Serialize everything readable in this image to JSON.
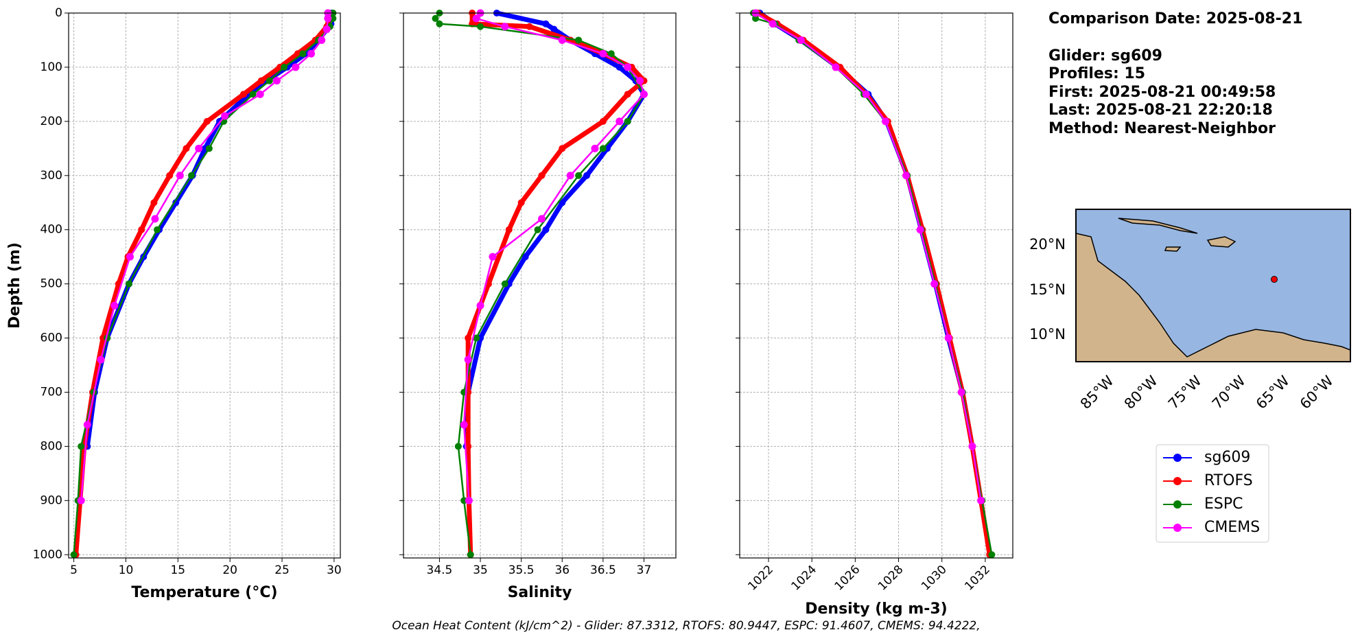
{
  "chart_data": [
    {
      "type": "line",
      "xlabel": "Temperature (°C)",
      "ylabel": "Depth (m)",
      "xlim": [
        4.5,
        30.6
      ],
      "xticks": [
        5,
        10,
        15,
        20,
        25,
        30
      ],
      "ylim": [
        0,
        1006
      ],
      "yticks": [
        0,
        100,
        200,
        300,
        400,
        500,
        600,
        700,
        800,
        900,
        1000
      ],
      "y_inverted": true,
      "grid": true,
      "xtick_rotation": 0,
      "series": [
        {
          "name": "sg609",
          "color": "#0000ff",
          "x": [
            29.8,
            29.8,
            29.7,
            29.3,
            28.5,
            27.3,
            25.5,
            23.5,
            21.8,
            19.0,
            17.6,
            16.4,
            14.8,
            13.2,
            11.7,
            10.3,
            8.2,
            7.0,
            6.3
          ],
          "y": [
            0,
            10,
            20,
            30,
            50,
            75,
            100,
            125,
            150,
            200,
            250,
            300,
            350,
            400,
            450,
            500,
            600,
            700,
            800
          ]
        },
        {
          "name": "RTOFS",
          "color": "#ff0000",
          "x": [
            29.5,
            29.5,
            29.3,
            28.2,
            26.5,
            24.8,
            23.0,
            21.3,
            17.8,
            15.8,
            14.2,
            12.7,
            11.5,
            10.2,
            9.3,
            7.8,
            6.8,
            6.0,
            5.6,
            5.2
          ],
          "y": [
            0,
            10,
            25,
            50,
            75,
            100,
            125,
            150,
            200,
            250,
            300,
            350,
            400,
            450,
            500,
            600,
            700,
            800,
            900,
            1000
          ]
        },
        {
          "name": "ESPC",
          "color": "#008000",
          "x": [
            29.9,
            29.9,
            29.6,
            28.5,
            27.0,
            25.2,
            23.8,
            22.2,
            19.4,
            18.0,
            16.3,
            13.0,
            10.3,
            8.2,
            6.9,
            5.7,
            5.4,
            5.0
          ],
          "y": [
            0,
            10,
            25,
            50,
            75,
            100,
            125,
            150,
            200,
            250,
            300,
            400,
            500,
            600,
            700,
            800,
            900,
            1000
          ]
        },
        {
          "name": "CMEMS",
          "color": "#ff00ff",
          "x": [
            29.4,
            29.4,
            29.3,
            28.8,
            27.8,
            26.3,
            24.5,
            22.9,
            19.5,
            17.0,
            15.2,
            12.8,
            10.4,
            8.9,
            7.6,
            6.3,
            5.7
          ],
          "y": [
            0,
            10,
            30,
            50,
            75,
            100,
            125,
            150,
            190,
            250,
            300,
            380,
            450,
            540,
            640,
            760,
            900
          ]
        }
      ]
    },
    {
      "type": "line",
      "xlabel": "Salinity",
      "xlim": [
        34.06,
        37.39
      ],
      "xticks": [
        34.5,
        35.0,
        35.5,
        36.0,
        36.5,
        37.0
      ],
      "ylim": [
        0,
        1006
      ],
      "yticks": [
        0,
        100,
        200,
        300,
        400,
        500,
        600,
        700,
        800,
        900,
        1000
      ],
      "y_inverted": true,
      "grid": true,
      "xtick_rotation": 0,
      "series": [
        {
          "color": "#0000ff",
          "x": [
            35.2,
            35.8,
            35.9,
            36.1,
            36.4,
            36.7,
            36.9,
            37.0,
            36.8,
            36.55,
            36.3,
            36.0,
            35.8,
            35.55,
            35.35,
            35.0,
            34.85,
            34.83
          ],
          "y": [
            0,
            20,
            30,
            50,
            75,
            100,
            125,
            150,
            200,
            250,
            300,
            350,
            400,
            450,
            500,
            600,
            700,
            800
          ]
        },
        {
          "color": "#ff0000",
          "x": [
            34.9,
            34.9,
            35.6,
            36.1,
            36.5,
            36.85,
            37.0,
            36.8,
            36.5,
            36.0,
            35.75,
            35.5,
            35.35,
            35.1,
            34.85,
            34.85,
            34.85,
            34.86,
            34.88
          ],
          "y": [
            0,
            20,
            25,
            50,
            75,
            100,
            125,
            150,
            200,
            250,
            300,
            350,
            400,
            500,
            600,
            700,
            800,
            900,
            1000
          ]
        },
        {
          "color": "#008000",
          "x": [
            34.5,
            34.45,
            34.5,
            35.0,
            36.2,
            36.6,
            36.8,
            37.0,
            36.8,
            36.5,
            36.2,
            35.7,
            35.3,
            34.95,
            34.8,
            34.73,
            34.8,
            34.88
          ],
          "y": [
            0,
            10,
            20,
            25,
            50,
            75,
            100,
            150,
            200,
            250,
            300,
            400,
            500,
            600,
            700,
            800,
            900,
            1000
          ]
        },
        {
          "color": "#ff00ff",
          "x": [
            35.0,
            34.95,
            35.3,
            36.0,
            36.5,
            36.8,
            36.95,
            37.0,
            36.7,
            36.4,
            36.1,
            35.75,
            35.15,
            35.0,
            34.85,
            34.8,
            34.86
          ],
          "y": [
            0,
            10,
            25,
            50,
            75,
            100,
            125,
            150,
            200,
            250,
            300,
            380,
            450,
            540,
            640,
            760,
            900
          ]
        }
      ]
    },
    {
      "type": "line",
      "xlabel": "Density (kg m-3)",
      "xlim": [
        1020.67,
        1033.27
      ],
      "xticks": [
        1022,
        1024,
        1026,
        1028,
        1030,
        1032
      ],
      "ylim": [
        0,
        1006
      ],
      "yticks": [
        0,
        100,
        200,
        300,
        400,
        500,
        600,
        700,
        800,
        900,
        1000
      ],
      "y_inverted": true,
      "grid": true,
      "xtick_rotation": 45,
      "series": [
        {
          "color": "#0000ff",
          "x": [
            1021.6,
            1022.3,
            1023.5,
            1025.2,
            1026.6,
            1027.45,
            1028.4,
            1029.05,
            1029.7,
            1030.3,
            1030.95,
            1031.4
          ],
          "y": [
            0,
            20,
            50,
            100,
            150,
            200,
            300,
            400,
            500,
            600,
            700,
            800
          ]
        },
        {
          "color": "#ff0000",
          "x": [
            1021.5,
            1022.4,
            1023.6,
            1025.3,
            1026.5,
            1027.5,
            1028.4,
            1029.1,
            1029.75,
            1030.35,
            1030.95,
            1031.4,
            1031.8,
            1032.2
          ],
          "y": [
            0,
            20,
            50,
            100,
            150,
            200,
            300,
            400,
            500,
            600,
            700,
            800,
            900,
            1000
          ]
        },
        {
          "color": "#008000",
          "x": [
            1021.3,
            1021.4,
            1022.3,
            1023.4,
            1025.1,
            1026.4,
            1027.4,
            1028.4,
            1029.05,
            1029.7,
            1030.3,
            1030.95,
            1031.4,
            1031.85,
            1032.3
          ],
          "y": [
            0,
            10,
            20,
            50,
            100,
            150,
            200,
            300,
            400,
            500,
            600,
            700,
            800,
            900,
            1000
          ]
        },
        {
          "color": "#ff00ff",
          "x": [
            1021.4,
            1022.2,
            1023.5,
            1025.1,
            1026.5,
            1027.4,
            1028.35,
            1029.0,
            1029.65,
            1030.3,
            1030.9,
            1031.4,
            1031.8
          ],
          "y": [
            0,
            20,
            50,
            100,
            150,
            200,
            300,
            400,
            500,
            600,
            700,
            800,
            900
          ]
        }
      ]
    }
  ],
  "info": [
    "Comparison Date: 2025-08-21",
    "Glider: sg609",
    "Profiles: 15",
    "First: 2025-08-21 00:49:58",
    "Last: 2025-08-21 22:20:18",
    "Method: Nearest-Neighbor"
  ],
  "map": {
    "lat_labels": [
      "20°N",
      "15°N",
      "10°N"
    ],
    "lon_labels": [
      "85°W",
      "80°W",
      "75°W",
      "70°W",
      "65°W",
      "60°W"
    ]
  },
  "footnote": "Ocean Heat Content (kJ/cm^2) - Glider: 87.3312,  RTOFS: 80.9447,  ESPC: 91.4607,  CMEMS: 94.4222,"
}
